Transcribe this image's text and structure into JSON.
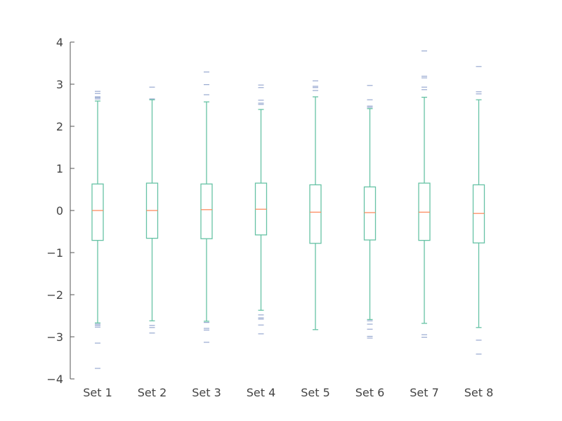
{
  "chart_data": {
    "type": "boxplot",
    "title": "",
    "xlabel": "",
    "ylabel": "",
    "ylim": [
      -4,
      4
    ],
    "yticks": [
      {
        "value": 4,
        "label": "4"
      },
      {
        "value": 3,
        "label": "3"
      },
      {
        "value": 2,
        "label": "2"
      },
      {
        "value": 1,
        "label": "1"
      },
      {
        "value": 0,
        "label": "0"
      },
      {
        "value": -1,
        "label": "−1"
      },
      {
        "value": -2,
        "label": "−2"
      },
      {
        "value": -3,
        "label": "−3"
      },
      {
        "value": -4,
        "label": "−4"
      }
    ],
    "categories": [
      "Set 1",
      "Set 2",
      "Set 3",
      "Set 4",
      "Set 5",
      "Set 6",
      "Set 7",
      "Set 8"
    ],
    "boxes": [
      {
        "name": "Set 1",
        "whisker_low": -2.67,
        "q1": -0.71,
        "median": 0.0,
        "q3": 0.63,
        "whisker_high": 2.6,
        "outliers": [
          2.83,
          2.78,
          2.7,
          2.68,
          2.65,
          -2.7,
          -2.73,
          -2.77,
          -3.15,
          -3.75
        ]
      },
      {
        "name": "Set 2",
        "whisker_low": -2.62,
        "q1": -0.66,
        "median": 0.0,
        "q3": 0.65,
        "whisker_high": 2.63,
        "outliers": [
          2.93,
          2.65,
          -2.73,
          -2.78,
          -2.91
        ]
      },
      {
        "name": "Set 3",
        "whisker_low": -2.63,
        "q1": -0.67,
        "median": 0.02,
        "q3": 0.63,
        "whisker_high": 2.58,
        "outliers": [
          3.29,
          2.99,
          2.75,
          -2.66,
          -2.8,
          -2.84,
          -3.13
        ]
      },
      {
        "name": "Set 4",
        "whisker_low": -2.37,
        "q1": -0.58,
        "median": 0.03,
        "q3": 0.65,
        "whisker_high": 2.4,
        "outliers": [
          2.98,
          2.92,
          2.62,
          2.55,
          2.52,
          -2.48,
          -2.55,
          -2.58,
          -2.72,
          -2.93
        ]
      },
      {
        "name": "Set 5",
        "whisker_low": -2.83,
        "q1": -0.78,
        "median": -0.04,
        "q3": 0.61,
        "whisker_high": 2.7,
        "outliers": [
          3.08,
          2.95,
          2.92,
          2.85
        ]
      },
      {
        "name": "Set 6",
        "whisker_low": -2.59,
        "q1": -0.7,
        "median": -0.05,
        "q3": 0.56,
        "whisker_high": 2.42,
        "outliers": [
          2.97,
          2.63,
          2.48,
          2.45,
          -2.62,
          -2.7,
          -2.82,
          -2.99,
          -3.03
        ]
      },
      {
        "name": "Set 7",
        "whisker_low": -2.68,
        "q1": -0.71,
        "median": -0.04,
        "q3": 0.65,
        "whisker_high": 2.69,
        "outliers": [
          3.79,
          3.19,
          3.15,
          2.93,
          2.87,
          -2.95,
          -3.01
        ]
      },
      {
        "name": "Set 8",
        "whisker_low": -2.78,
        "q1": -0.77,
        "median": -0.07,
        "q3": 0.61,
        "whisker_high": 2.63,
        "outliers": [
          3.42,
          2.82,
          2.77,
          -3.08,
          -3.41
        ]
      }
    ],
    "colors": {
      "box": "#66c2a5",
      "median": "#fc8d62",
      "outlier": "#8da0cb",
      "axis": "#555555",
      "text": "#444444"
    },
    "grid": false,
    "legend": "none"
  }
}
